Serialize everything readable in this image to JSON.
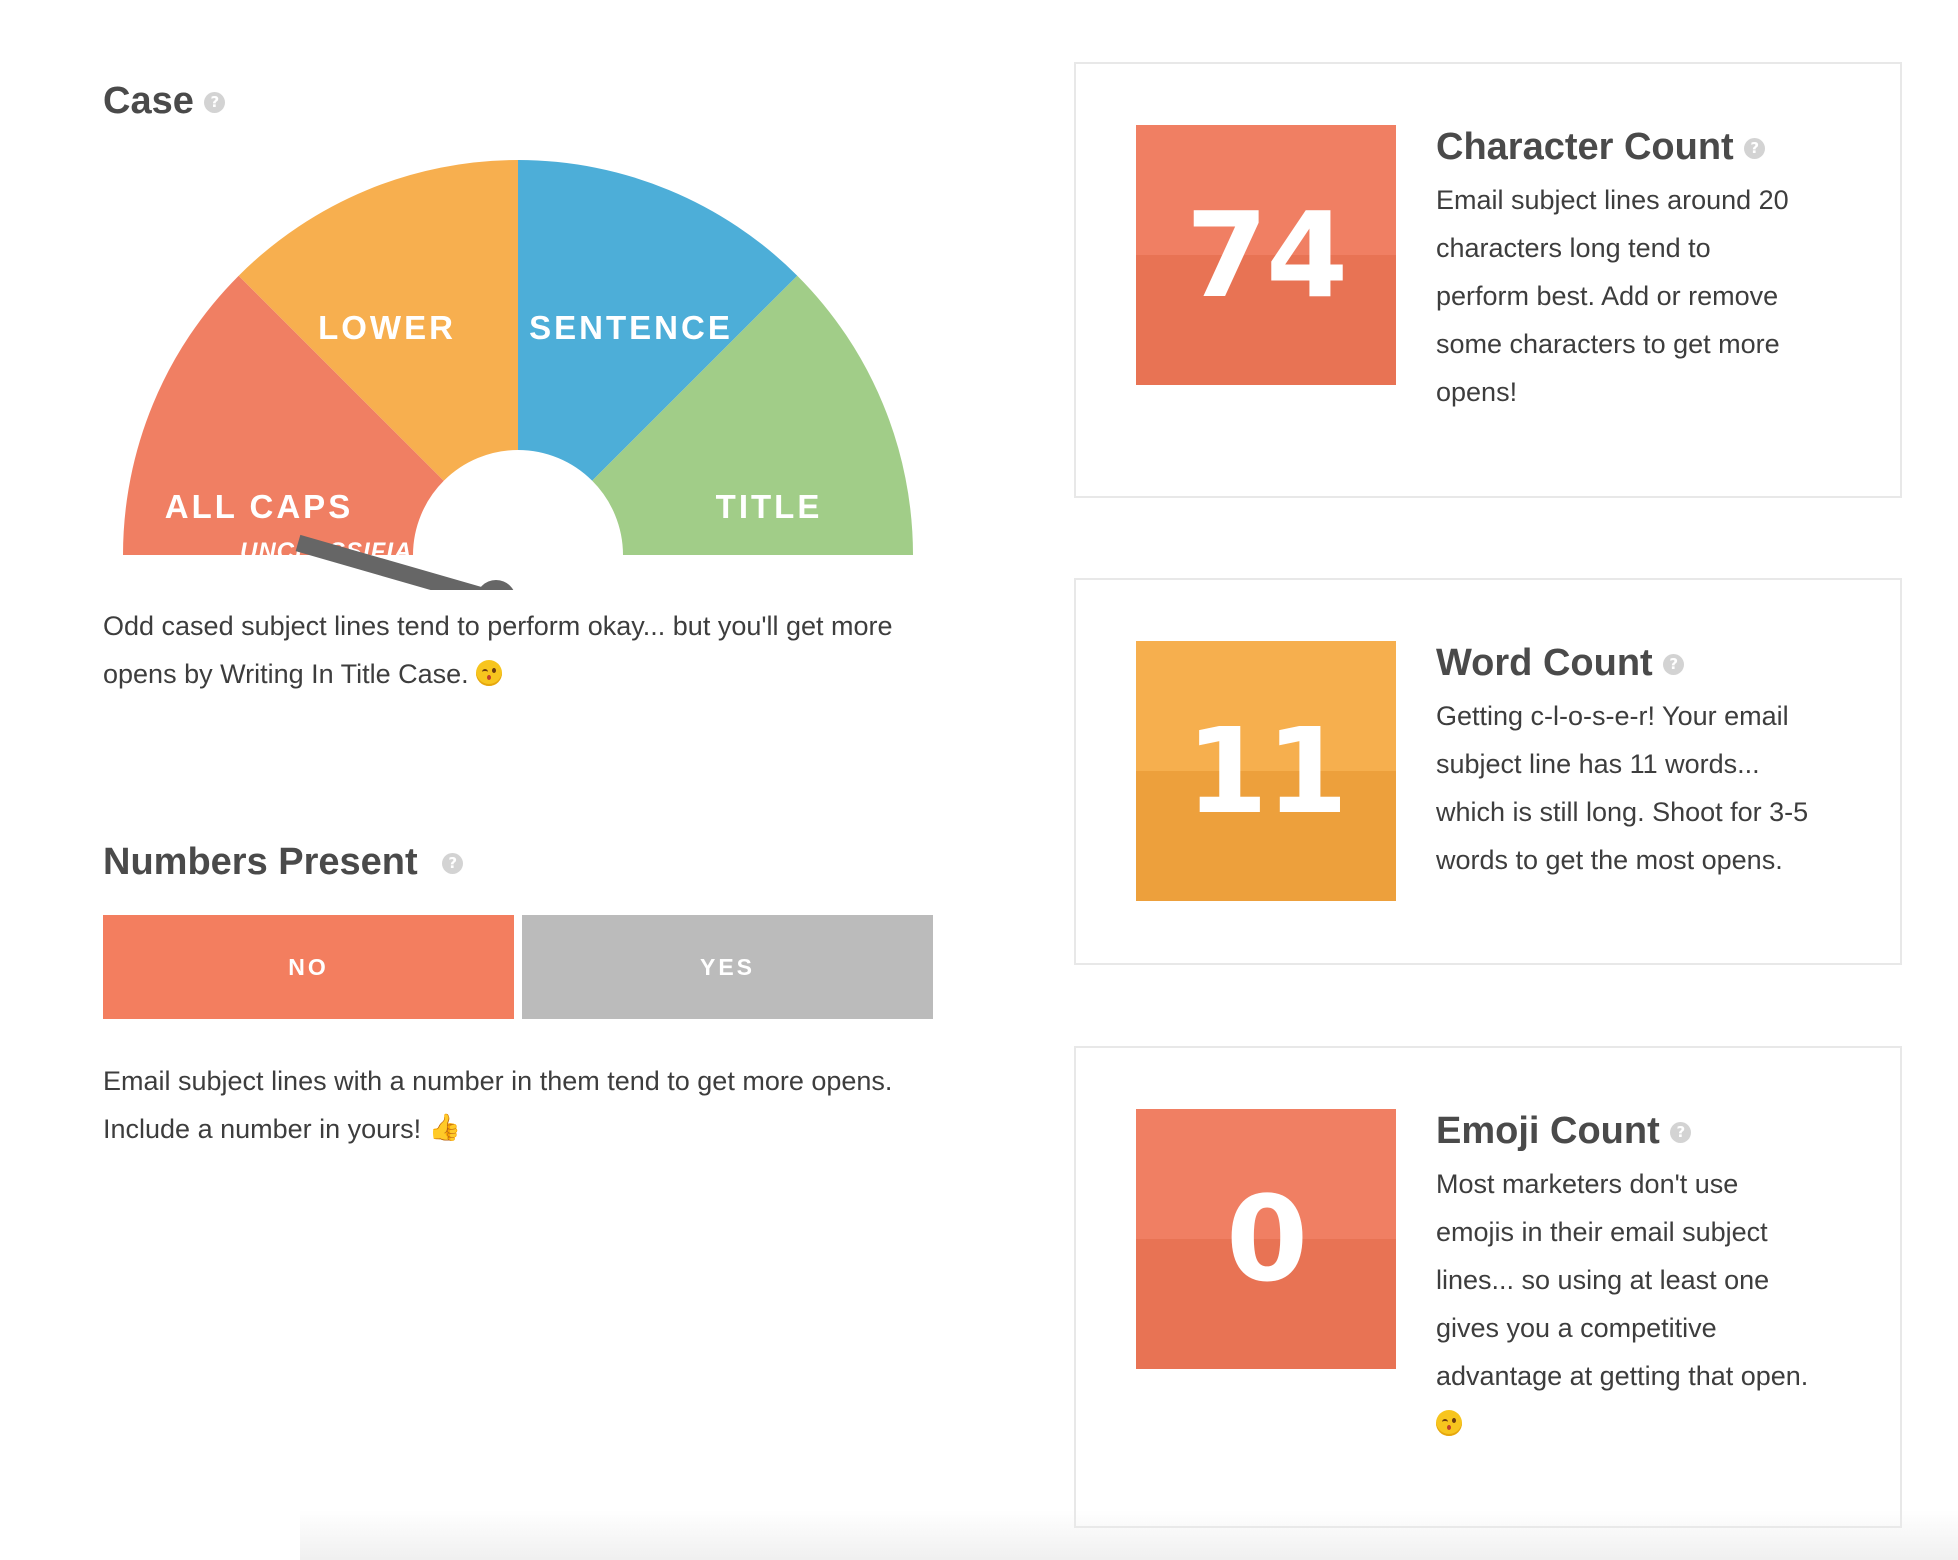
{
  "case": {
    "title": "Case",
    "help": "?",
    "segments": {
      "all_caps": "ALL CAPS",
      "lower": "LOWER",
      "sentence": "SENTENCE",
      "title": "TITLE"
    },
    "result_label": "UNCLASSIFIABLE",
    "description": "Odd cased subject lines tend to perform okay... but you'll get more opens by Writing In Title Case.",
    "colors": {
      "all_caps": "#F07F63",
      "lower": "#F7AF4F",
      "sentence": "#4DAED8",
      "title": "#A1CD88",
      "needle": "#666666"
    }
  },
  "numbers": {
    "title": "Numbers Present",
    "help": "?",
    "no_label": "NO",
    "yes_label": "YES",
    "selected": "NO",
    "description": "Email subject lines with a number in them tend to get more opens. Include a number in yours!"
  },
  "cards": [
    {
      "value": "74",
      "title": "Character Count",
      "help": "?",
      "lines": [
        "Email subject lines around 20",
        "characters long tend to",
        "perform best. Add or remove",
        "some characters to get more",
        "opens!"
      ],
      "color_top": "#F07F63",
      "color_bottom": "#E87354"
    },
    {
      "value": "11",
      "title": "Word Count",
      "help": "?",
      "lines": [
        "Getting c-l-o-s-e-r! Your email",
        "subject line has 11 words...",
        "which is still long. Shoot for 3-5",
        "words to get the most opens."
      ],
      "color_top": "#F6AF4E",
      "color_bottom": "#EDA03C"
    },
    {
      "value": "0",
      "title": "Emoji Count",
      "help": "?",
      "lines": [
        "Most marketers don't use",
        "emojis in their email subject",
        "lines... so using at least one",
        "gives you a competitive",
        "advantage at getting that open."
      ],
      "color_top": "#F07F63",
      "color_bottom": "#E87354"
    }
  ]
}
